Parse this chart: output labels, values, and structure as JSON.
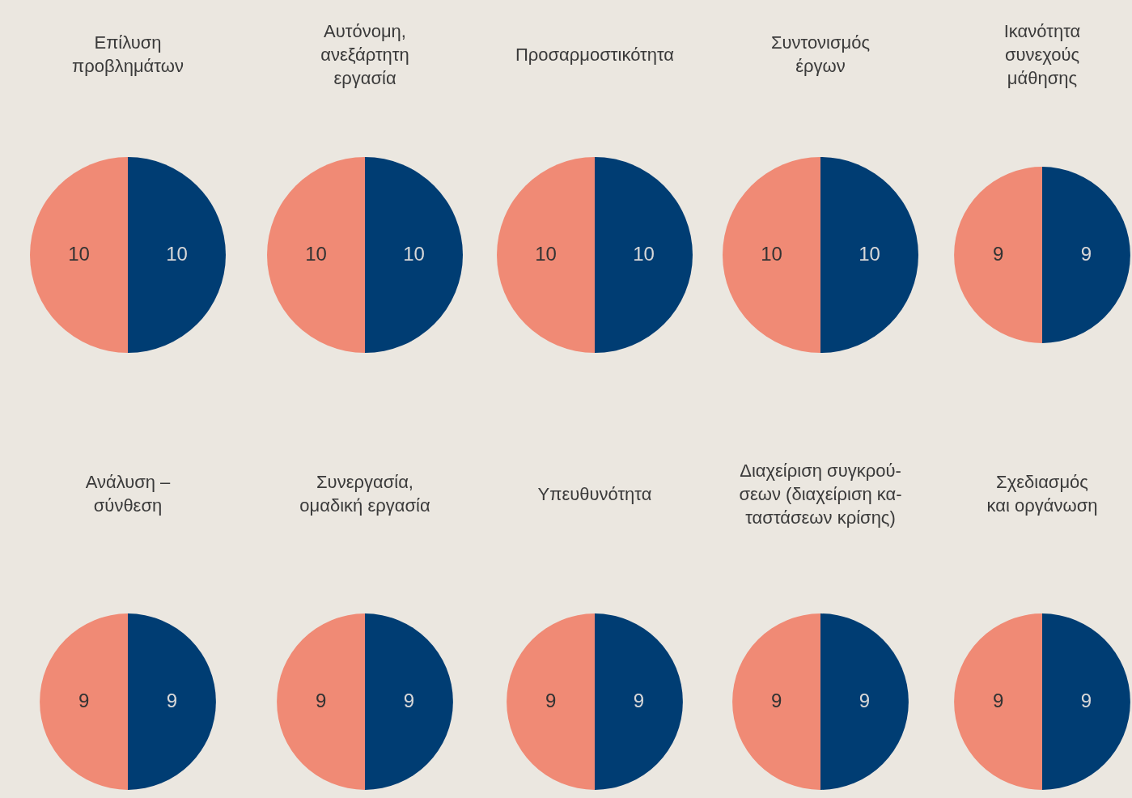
{
  "chart_data": [
    {
      "type": "pie",
      "title": "Επίλυση\nπροβλημάτων",
      "categories": [
        null,
        null
      ],
      "values": [
        10,
        10
      ],
      "colors": [
        "#003d73",
        "#f08a75"
      ],
      "data_labels": true
    },
    {
      "type": "pie",
      "title": "Αυτόνομη,\nανεξάρτητη\nεργασία",
      "categories": [
        null,
        null
      ],
      "values": [
        10,
        10
      ],
      "colors": [
        "#003d73",
        "#f08a75"
      ],
      "data_labels": true
    },
    {
      "type": "pie",
      "title": "Προσαρμοστικότητα",
      "categories": [
        null,
        null
      ],
      "values": [
        10,
        10
      ],
      "colors": [
        "#003d73",
        "#f08a75"
      ],
      "data_labels": true
    },
    {
      "type": "pie",
      "title": "Συντονισμός\nέργων",
      "categories": [
        null,
        null
      ],
      "values": [
        10,
        10
      ],
      "colors": [
        "#003d73",
        "#f08a75"
      ],
      "data_labels": true
    },
    {
      "type": "pie",
      "title": "Ικανότητα\nσυνεχούς\nμάθησης",
      "categories": [
        null,
        null
      ],
      "values": [
        9,
        9
      ],
      "colors": [
        "#003d73",
        "#f08a75"
      ],
      "data_labels": true
    },
    {
      "type": "pie",
      "title": "Ανάλυση –\nσύνθεση",
      "categories": [
        null,
        null
      ],
      "values": [
        9,
        9
      ],
      "colors": [
        "#003d73",
        "#f08a75"
      ],
      "data_labels": true
    },
    {
      "type": "pie",
      "title": "Συνεργασία,\nομαδική εργασία",
      "categories": [
        null,
        null
      ],
      "values": [
        9,
        9
      ],
      "colors": [
        "#003d73",
        "#f08a75"
      ],
      "data_labels": true
    },
    {
      "type": "pie",
      "title": "Υπευθυνότητα",
      "categories": [
        null,
        null
      ],
      "values": [
        9,
        9
      ],
      "colors": [
        "#003d73",
        "#f08a75"
      ],
      "data_labels": true
    },
    {
      "type": "pie",
      "title": "Διαχείριση συγκρού-\nσεων (διαχείριση κα-\nταστάσεων κρίσης)",
      "categories": [
        null,
        null
      ],
      "values": [
        9,
        9
      ],
      "colors": [
        "#003d73",
        "#f08a75"
      ],
      "data_labels": true
    },
    {
      "type": "pie",
      "title": "Σχεδιασμός\nκαι οργάνωση",
      "categories": [
        null,
        null
      ],
      "values": [
        9,
        9
      ],
      "colors": [
        "#003d73",
        "#f08a75"
      ],
      "data_labels": true
    }
  ]
}
